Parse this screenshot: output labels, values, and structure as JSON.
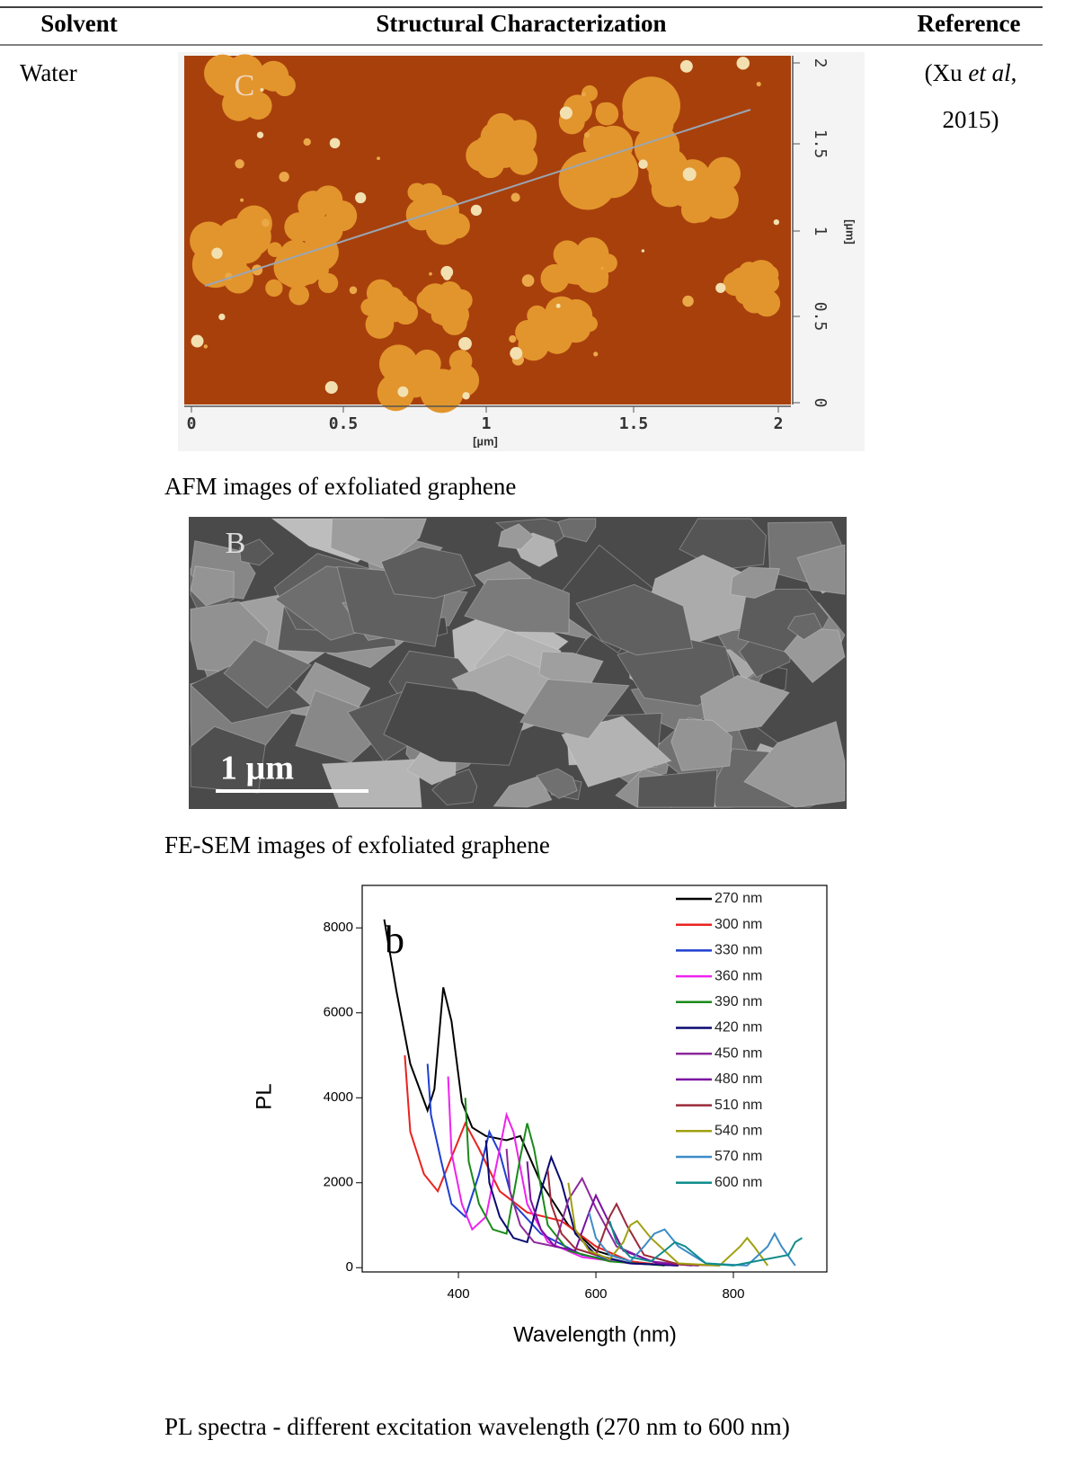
{
  "table": {
    "headers": [
      "Solvent",
      "Structural Characterization",
      "Reference"
    ],
    "rows": [
      {
        "solvent": "Water",
        "reference": [
          "(Xu ",
          "et al",
          ",",
          "2015)"
        ]
      }
    ]
  },
  "figures": [
    {
      "panel_label": "C",
      "x_ticks": [
        "0",
        "0.5",
        "1",
        "1.5",
        "2"
      ],
      "x_unit": "[µm]",
      "y_ticks": [
        "2",
        "1.5",
        "1",
        "0.5",
        "0"
      ],
      "y_unit": "[µm]",
      "caption": "AFM images of exfoliated graphene"
    },
    {
      "panel_label": "B",
      "scale_bar": "1 µm",
      "caption": "FE-SEM images of exfoliated graphene"
    },
    {
      "chart_data": {
        "type": "line",
        "panel_label": "b",
        "x_label": "Wavelength (nm)",
        "y_label": "PL",
        "xlim": [
          260,
          936
        ],
        "ylim": [
          -100,
          9000
        ],
        "xticks": [
          400,
          600,
          800
        ],
        "yticks": [
          0,
          2000,
          4000,
          6000,
          8000
        ],
        "legend": "upper right",
        "series": [
          {
            "name": "270 nm",
            "color": "#000000",
            "x": [
              292,
              310,
              330,
              355,
              365,
              378,
              390,
              405,
              420,
              440,
              470,
              490,
              520,
              560,
              600,
              650,
              700
            ],
            "values": [
              8200,
              6500,
              4800,
              3700,
              4200,
              6600,
              5800,
              3900,
              3300,
              3100,
              3000,
              3100,
              2000,
              1000,
              400,
              150,
              50
            ]
          },
          {
            "name": "300 nm",
            "color": "#e8231f",
            "x": [
              322,
              330,
              350,
              370,
              390,
              410,
              430,
              460,
              500,
              550,
              600,
              650,
              700
            ],
            "values": [
              5000,
              3200,
              2200,
              1800,
              2600,
              3400,
              2800,
              1800,
              1300,
              1100,
              500,
              150,
              50
            ]
          },
          {
            "name": "330 nm",
            "color": "#1f3fd0",
            "x": [
              355,
              360,
              375,
              390,
              410,
              430,
              445,
              460,
              480,
              520,
              580,
              650,
              720
            ],
            "values": [
              4800,
              3600,
              2500,
              1500,
              1200,
              2200,
              3200,
              2700,
              1500,
              800,
              300,
              100,
              50
            ]
          },
          {
            "name": "360 nm",
            "color": "#ee22ee",
            "x": [
              385,
              390,
              405,
              420,
              440,
              460,
              470,
              480,
              500,
              530,
              580,
              650,
              720
            ],
            "values": [
              4500,
              2700,
              1500,
              900,
              1200,
              2800,
              3600,
              3200,
              1500,
              600,
              250,
              100,
              50
            ]
          },
          {
            "name": "390 nm",
            "color": "#1a8a1a",
            "x": [
              410,
              415,
              430,
              450,
              470,
              490,
              500,
              510,
              530,
              560,
              620,
              700
            ],
            "values": [
              4000,
              2500,
              1500,
              900,
              800,
              2600,
              3400,
              2800,
              1000,
              400,
              150,
              50
            ]
          },
          {
            "name": "420 nm",
            "color": "#0a0a70",
            "x": [
              440,
              445,
              460,
              480,
              500,
              520,
              535,
              550,
              570,
              600,
              650,
              720
            ],
            "values": [
              3000,
              2000,
              1200,
              700,
              600,
              1800,
              2600,
              2000,
              800,
              300,
              100,
              50
            ]
          },
          {
            "name": "450 nm",
            "color": "#8b2a9b",
            "x": [
              470,
              475,
              490,
              510,
              540,
              560,
              580,
              600,
              630,
              680,
              740
            ],
            "values": [
              2800,
              1800,
              1000,
              600,
              500,
              1600,
              2100,
              1400,
              500,
              150,
              50
            ]
          },
          {
            "name": "480 nm",
            "color": "#7a10a0",
            "x": [
              500,
              505,
              520,
              540,
              570,
              590,
              600,
              615,
              640,
              690,
              750
            ],
            "values": [
              2500,
              1600,
              900,
              500,
              400,
              1300,
              1700,
              1200,
              400,
              100,
              50
            ]
          },
          {
            "name": "510 nm",
            "color": "#9b2a3a",
            "x": [
              530,
              535,
              550,
              570,
              600,
              620,
              630,
              645,
              670,
              720,
              780
            ],
            "values": [
              2300,
              1500,
              800,
              450,
              300,
              1200,
              1500,
              1000,
              300,
              80,
              50
            ]
          },
          {
            "name": "540 nm",
            "color": "#a0a010",
            "x": [
              560,
              570,
              590,
              620,
              640,
              650,
              660,
              680,
              720,
              780,
              810,
              820,
              830,
              850
            ],
            "values": [
              2000,
              900,
              400,
              200,
              600,
              1000,
              1100,
              700,
              100,
              50,
              500,
              700,
              500,
              50
            ]
          },
          {
            "name": "570 nm",
            "color": "#3c8cc8",
            "x": [
              590,
              600,
              620,
              650,
              670,
              685,
              700,
              720,
              760,
              820,
              850,
              860,
              870,
              890
            ],
            "values": [
              1300,
              700,
              300,
              150,
              500,
              800,
              900,
              500,
              100,
              50,
              500,
              800,
              500,
              50
            ]
          },
          {
            "name": "600 nm",
            "color": "#0f8c8c",
            "x": [
              620,
              630,
              650,
              680,
              700,
              715,
              730,
              760,
              800,
              880,
              890,
              900
            ],
            "values": [
              1100,
              600,
              250,
              150,
              400,
              600,
              500,
              100,
              50,
              300,
              600,
              700
            ]
          }
        ]
      },
      "caption": "PL spectra - different excitation wavelength (270 nm to 600 nm)"
    }
  ]
}
